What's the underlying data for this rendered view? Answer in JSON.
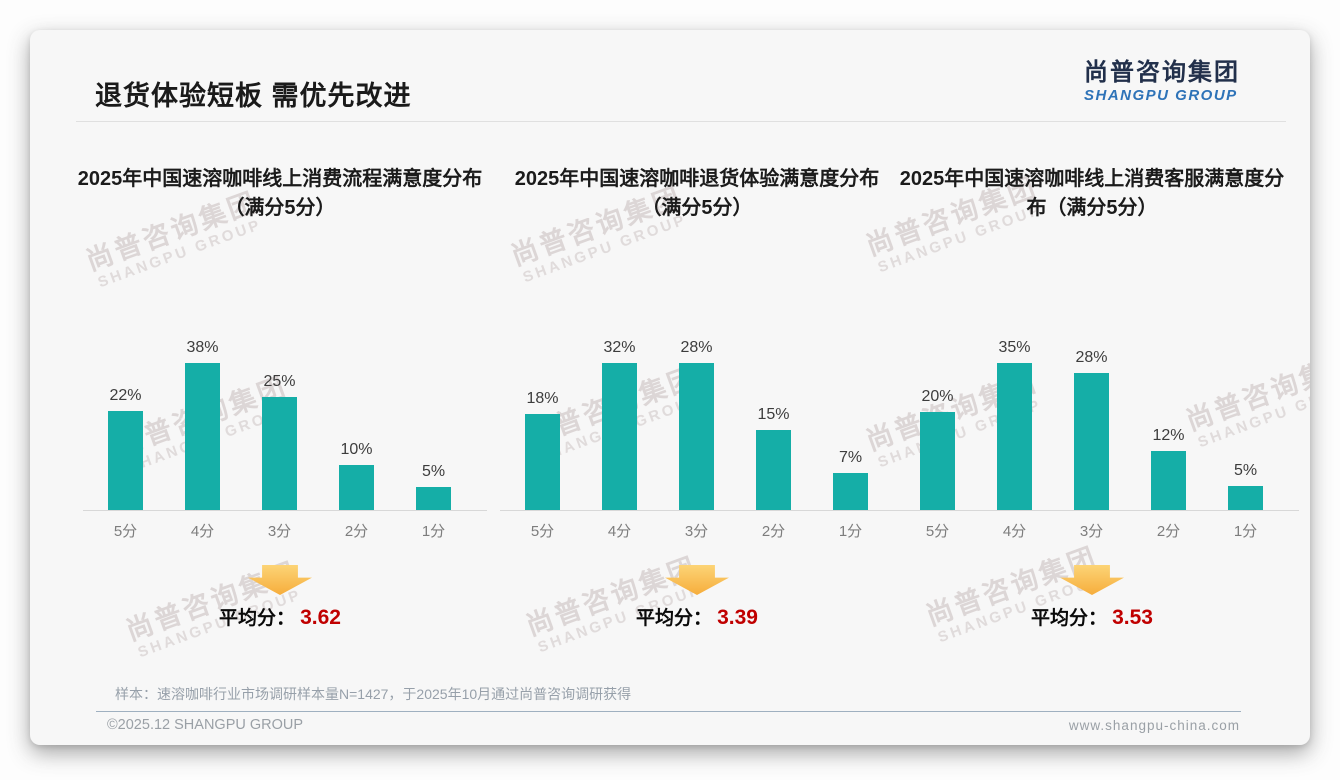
{
  "header": {
    "title": "退货体验短板 需优先改进"
  },
  "logo": {
    "cn": "尚普咨询集团",
    "en": "SHANGPU GROUP"
  },
  "watermark": {
    "cn": "尚普咨询集团",
    "en": "SHANGPU GROUP"
  },
  "chart_data": [
    {
      "type": "bar",
      "title": "2025年中国速溶咖啡线上消费流程满意度分布（满分5分）",
      "categories": [
        "5分",
        "4分",
        "3分",
        "2分",
        "1分"
      ],
      "values": [
        22,
        38,
        25,
        10,
        5
      ],
      "unit": "%",
      "value_labels": [
        "22%",
        "38%",
        "25%",
        "10%",
        "5%"
      ],
      "average_label": "平均分：",
      "average_value": "3.62",
      "legend": "none",
      "grid": false
    },
    {
      "type": "bar",
      "title": "2025年中国速溶咖啡退货体验满意度分布（满分5分）",
      "categories": [
        "5分",
        "4分",
        "3分",
        "2分",
        "1分"
      ],
      "values": [
        18,
        32,
        28,
        15,
        7
      ],
      "unit": "%",
      "value_labels": [
        "18%",
        "32%",
        "28%",
        "15%",
        "7%"
      ],
      "average_label": "平均分：",
      "average_value": "3.39",
      "legend": "none",
      "grid": false
    },
    {
      "type": "bar",
      "title": "2025年中国速溶咖啡线上消费客服满意度分布（满分5分）",
      "categories": [
        "5分",
        "4分",
        "3分",
        "2分",
        "1分"
      ],
      "values": [
        20,
        35,
        28,
        12,
        5
      ],
      "unit": "%",
      "value_labels": [
        "20%",
        "35%",
        "28%",
        "12%",
        "5%"
      ],
      "average_label": "平均分：",
      "average_value": "3.53",
      "legend": "none",
      "grid": false
    }
  ],
  "footer": {
    "sample_note": "样本：速溶咖啡行业市场调研样本量N=1427，于2025年10月通过尚普咨询调研获得",
    "copyright": "©2025.12 SHANGPU GROUP",
    "website": "www.shangpu-china.com"
  },
  "colors": {
    "bar": "#15aea7",
    "average_value": "#c00000",
    "arrow": "#f9be4b",
    "logo_navy": "#22304b",
    "logo_blue": "#2e73b8"
  }
}
